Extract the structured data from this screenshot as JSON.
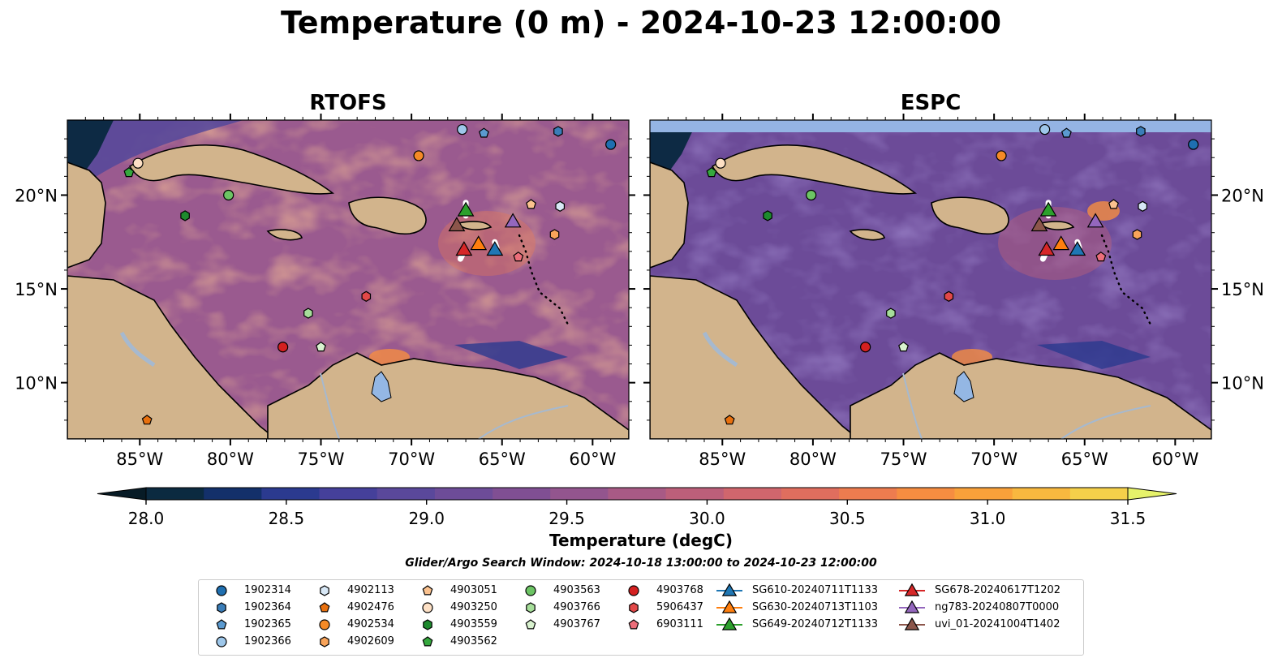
{
  "title": "Temperature (0 m) - 2024-10-23 12:00:00",
  "panels": [
    {
      "title": "RTOFS"
    },
    {
      "title": "ESPC"
    }
  ],
  "axes": {
    "lon_ticks": [
      "85°W",
      "80°W",
      "75°W",
      "70°W",
      "65°W",
      "60°W"
    ],
    "lon_values": [
      -85,
      -80,
      -75,
      -70,
      -65,
      -60
    ],
    "lat_ticks": [
      "20°N",
      "15°N",
      "10°N"
    ],
    "lat_values": [
      20,
      15,
      10
    ],
    "lon_range": [
      -89,
      -58
    ],
    "lat_range": [
      7,
      24
    ]
  },
  "colorbar": {
    "label": "Temperature (degC)",
    "ticks": [
      "28.0",
      "28.5",
      "29.0",
      "29.5",
      "30.0",
      "30.5",
      "31.0",
      "31.5"
    ],
    "tick_values": [
      28.0,
      28.5,
      29.0,
      29.5,
      30.0,
      30.5,
      31.0,
      31.5
    ],
    "range": [
      28.0,
      31.5
    ],
    "extend": "both",
    "colors": [
      "#0b2a40",
      "#13306a",
      "#2b3a8f",
      "#45409a",
      "#5a489b",
      "#6d4c98",
      "#804f93",
      "#93558e",
      "#a85a85",
      "#bc5f7a",
      "#d0666d",
      "#e06e5e",
      "#ed7c4f",
      "#f68d41",
      "#f9a13a",
      "#f8b83f",
      "#f5d04a"
    ],
    "under_color": "#071b26",
    "over_color": "#e6f26a"
  },
  "search_window": "Glider/Argo Search Window: 2024-10-18 13:00:00 to 2024-10-23 12:00:00",
  "legend": [
    {
      "label": "1902314",
      "marker": "circle",
      "color": "#1f6fb0"
    },
    {
      "label": "1902364",
      "marker": "hexagon",
      "color": "#3a7db8"
    },
    {
      "label": "1902365",
      "marker": "pentagon",
      "color": "#5b9ad0"
    },
    {
      "label": "1902366",
      "marker": "circle",
      "color": "#9ec7ea"
    },
    {
      "label": "4902113",
      "marker": "hexagon",
      "color": "#d8e8f6"
    },
    {
      "label": "4902476",
      "marker": "pentagon",
      "color": "#e8700e"
    },
    {
      "label": "4902534",
      "marker": "circle",
      "color": "#f58a26"
    },
    {
      "label": "4902609",
      "marker": "hexagon",
      "color": "#f9a45a"
    },
    {
      "label": "4903051",
      "marker": "pentagon",
      "color": "#fbc28f"
    },
    {
      "label": "4903250",
      "marker": "circle",
      "color": "#fde0c5"
    },
    {
      "label": "4903559",
      "marker": "hexagon",
      "color": "#1e8a2e"
    },
    {
      "label": "4903562",
      "marker": "pentagon",
      "color": "#35a83e"
    },
    {
      "label": "4903563",
      "marker": "circle",
      "color": "#6cc464"
    },
    {
      "label": "4903766",
      "marker": "hexagon",
      "color": "#a6de9a"
    },
    {
      "label": "4903767",
      "marker": "pentagon",
      "color": "#d9f2cf"
    },
    {
      "label": "4903768",
      "marker": "circle",
      "color": "#d42020"
    },
    {
      "label": "5906437",
      "marker": "hexagon",
      "color": "#e24848"
    },
    {
      "label": "6903111",
      "marker": "pentagon",
      "color": "#ec6e7a"
    },
    {
      "label": "SG610-20240711T1133",
      "marker": "triangle",
      "color": "#1f77b4"
    },
    {
      "label": "SG630-20240713T1103",
      "marker": "triangle",
      "color": "#ff7f0e"
    },
    {
      "label": "SG649-20240712T1133",
      "marker": "triangle",
      "color": "#2ca02c"
    },
    {
      "label": "SG678-20240617T1202",
      "marker": "triangle",
      "color": "#d62728"
    },
    {
      "label": "ng783-20240807T0000",
      "marker": "triangle",
      "color": "#9467bd"
    },
    {
      "label": "uvi_01-20241004T1402",
      "marker": "triangle",
      "color": "#8c564b"
    }
  ],
  "markers": [
    {
      "id": "1902314",
      "lon": -59.0,
      "lat": 22.7
    },
    {
      "id": "1902364",
      "lon": -61.9,
      "lat": 23.4
    },
    {
      "id": "1902365",
      "lon": -66.0,
      "lat": 23.3
    },
    {
      "id": "1902366",
      "lon": -67.2,
      "lat": 23.5
    },
    {
      "id": "4902113",
      "lon": -61.8,
      "lat": 19.4
    },
    {
      "id": "4902476",
      "lon": -84.6,
      "lat": 8.0
    },
    {
      "id": "4902534",
      "lon": -69.6,
      "lat": 22.1
    },
    {
      "id": "4902609",
      "lon": -62.1,
      "lat": 17.9
    },
    {
      "id": "4903051",
      "lon": -63.4,
      "lat": 19.5
    },
    {
      "id": "4903250",
      "lon": -85.1,
      "lat": 21.7
    },
    {
      "id": "4903559",
      "lon": -82.5,
      "lat": 18.9
    },
    {
      "id": "4903562",
      "lon": -85.6,
      "lat": 21.2
    },
    {
      "id": "4903563",
      "lon": -80.1,
      "lat": 20.0
    },
    {
      "id": "4903766",
      "lon": -75.7,
      "lat": 13.7
    },
    {
      "id": "4903767",
      "lon": -75.0,
      "lat": 11.9
    },
    {
      "id": "4903768",
      "lon": -77.1,
      "lat": 11.9
    },
    {
      "id": "5906437",
      "lon": -72.5,
      "lat": 14.6
    },
    {
      "id": "6903111",
      "lon": -64.1,
      "lat": 16.7
    },
    {
      "id": "SG610-20240711T1133",
      "lon": -65.4,
      "lat": 17.1
    },
    {
      "id": "SG630-20240713T1103",
      "lon": -66.3,
      "lat": 17.4
    },
    {
      "id": "SG649-20240712T1133",
      "lon": -67.0,
      "lat": 19.2
    },
    {
      "id": "SG678-20240617T1202",
      "lon": -67.1,
      "lat": 17.1
    },
    {
      "id": "ng783-20240807T0000",
      "lon": -64.4,
      "lat": 18.6
    },
    {
      "id": "uvi_01-20241004T1402",
      "lon": -67.5,
      "lat": 18.4
    }
  ]
}
